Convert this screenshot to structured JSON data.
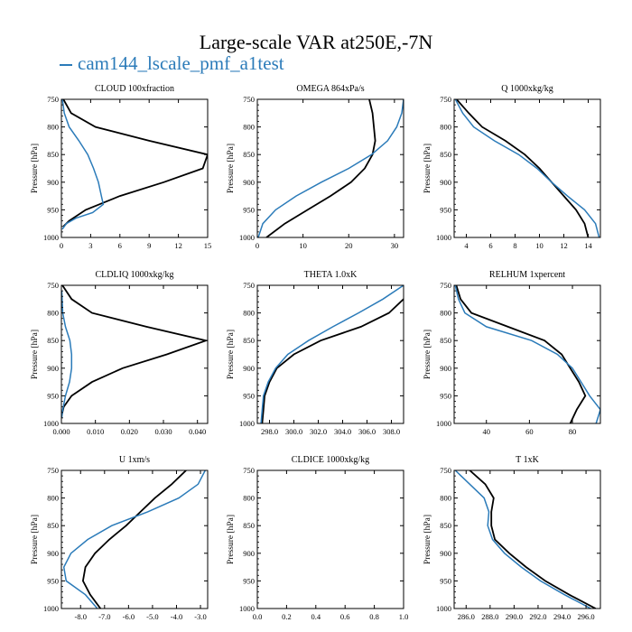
{
  "title": "Large-scale VAR at250E,-7N",
  "legend": {
    "label": "cam144_lscale_pmf_a1test",
    "color": "#2b7bb9"
  },
  "colors": {
    "model": "#2b7bb9",
    "obs": "#000000"
  },
  "chart_data": [
    {
      "type": "line",
      "title": "CLOUD  100xfraction",
      "ylabel": "Pressure [hPa]",
      "xlim": [
        0,
        15
      ],
      "ylim": [
        750,
        1000
      ],
      "xticks": [
        0,
        3,
        6,
        9,
        12,
        15
      ],
      "xticklabels": [
        "0",
        "3",
        "6",
        "9",
        "12",
        "15"
      ],
      "yticks": [
        750,
        800,
        850,
        900,
        950,
        1000
      ],
      "series": [
        {
          "color": "#000000",
          "points": [
            [
              0.2,
              750
            ],
            [
              1.0,
              775
            ],
            [
              3.5,
              800
            ],
            [
              9,
              825
            ],
            [
              15,
              850
            ],
            [
              14.5,
              875
            ],
            [
              10.5,
              900
            ],
            [
              6,
              925
            ],
            [
              2.5,
              950
            ],
            [
              0.8,
              970
            ],
            [
              0.2,
              980
            ]
          ]
        },
        {
          "color": "#2b7bb9",
          "points": [
            [
              0.1,
              750
            ],
            [
              0.3,
              775
            ],
            [
              0.8,
              800
            ],
            [
              1.8,
              825
            ],
            [
              2.7,
              850
            ],
            [
              3.3,
              875
            ],
            [
              3.8,
              900
            ],
            [
              4.1,
              925
            ],
            [
              4.3,
              940
            ],
            [
              3.2,
              955
            ],
            [
              1.5,
              965
            ],
            [
              0.5,
              975
            ],
            [
              0.1,
              985
            ]
          ]
        }
      ]
    },
    {
      "type": "line",
      "title": "OMEGA  864xPa/s",
      "ylabel": "Pressure [hPa]",
      "xlim": [
        0,
        32
      ],
      "ylim": [
        750,
        1000
      ],
      "xticks": [
        0,
        10,
        20,
        30
      ],
      "xticklabels": [
        "0",
        "10",
        "20",
        "30"
      ],
      "yticks": [
        750,
        800,
        850,
        900,
        950,
        1000
      ],
      "series": [
        {
          "color": "#000000",
          "points": [
            [
              24.5,
              750
            ],
            [
              25.2,
              775
            ],
            [
              25.5,
              800
            ],
            [
              25.8,
              825
            ],
            [
              25.2,
              850
            ],
            [
              23.5,
              875
            ],
            [
              20.5,
              900
            ],
            [
              16,
              925
            ],
            [
              11,
              950
            ],
            [
              6,
              975
            ],
            [
              2,
              1000
            ]
          ]
        },
        {
          "color": "#2b7bb9",
          "points": [
            [
              32,
              750
            ],
            [
              31.6,
              775
            ],
            [
              30.5,
              800
            ],
            [
              28.5,
              825
            ],
            [
              25,
              850
            ],
            [
              20,
              875
            ],
            [
              14,
              900
            ],
            [
              8.5,
              925
            ],
            [
              4,
              950
            ],
            [
              1.2,
              975
            ],
            [
              0.2,
              1000
            ]
          ]
        }
      ]
    },
    {
      "type": "line",
      "title": "Q  1000xkg/kg",
      "ylabel": "Pressure [hPa]",
      "xlim": [
        3,
        15
      ],
      "ylim": [
        750,
        1000
      ],
      "xticks": [
        4,
        6,
        8,
        10,
        12,
        14
      ],
      "xticklabels": [
        "4",
        "6",
        "8",
        "10",
        "12",
        "14"
      ],
      "yticks": [
        750,
        800,
        850,
        900,
        950,
        1000
      ],
      "series": [
        {
          "color": "#000000",
          "points": [
            [
              3.2,
              750
            ],
            [
              4.2,
              775
            ],
            [
              5.3,
              800
            ],
            [
              7.2,
              825
            ],
            [
              8.8,
              850
            ],
            [
              10,
              875
            ],
            [
              11,
              900
            ],
            [
              12,
              925
            ],
            [
              13,
              950
            ],
            [
              13.7,
              975
            ],
            [
              14,
              1000
            ]
          ]
        },
        {
          "color": "#2b7bb9",
          "points": [
            [
              3.1,
              750
            ],
            [
              3.7,
              775
            ],
            [
              4.6,
              800
            ],
            [
              6.3,
              825
            ],
            [
              8.3,
              850
            ],
            [
              9.8,
              875
            ],
            [
              11,
              900
            ],
            [
              12.3,
              925
            ],
            [
              13.7,
              950
            ],
            [
              14.6,
              975
            ],
            [
              14.9,
              1000
            ]
          ]
        }
      ]
    },
    {
      "type": "line",
      "title": "CLDLIQ  1000xkg/kg",
      "ylabel": "Pressure [hPa]",
      "xlim": [
        0,
        0.043
      ],
      "ylim": [
        750,
        1000
      ],
      "xticks": [
        0,
        0.01,
        0.02,
        0.03,
        0.04
      ],
      "xticklabels": [
        "0.000",
        "0.010",
        "0.020",
        "0.030",
        "0.040"
      ],
      "yticks": [
        750,
        800,
        850,
        900,
        950,
        1000
      ],
      "series": [
        {
          "color": "#000000",
          "points": [
            [
              0.0003,
              750
            ],
            [
              0.003,
              775
            ],
            [
              0.009,
              800
            ],
            [
              0.025,
              825
            ],
            [
              0.0425,
              850
            ],
            [
              0.031,
              875
            ],
            [
              0.018,
              900
            ],
            [
              0.009,
              925
            ],
            [
              0.003,
              950
            ],
            [
              0.0007,
              970
            ],
            [
              0.0001,
              985
            ]
          ]
        },
        {
          "color": "#2b7bb9",
          "points": [
            [
              0.0001,
              760
            ],
            [
              0.0004,
              800
            ],
            [
              0.0012,
              825
            ],
            [
              0.0025,
              850
            ],
            [
              0.003,
              875
            ],
            [
              0.003,
              900
            ],
            [
              0.0024,
              925
            ],
            [
              0.0012,
              950
            ],
            [
              0.0004,
              975
            ],
            [
              0.0001,
              990
            ]
          ]
        }
      ]
    },
    {
      "type": "line",
      "title": "THETA  1.0xK",
      "ylabel": "Pressure [hPa]",
      "xlim": [
        297,
        309
      ],
      "ylim": [
        750,
        1000
      ],
      "xticks": [
        298,
        300,
        302,
        304,
        306,
        308
      ],
      "xticklabels": [
        "298.0",
        "300.0",
        "302.0",
        "304.0",
        "306.0",
        "308.0"
      ],
      "yticks": [
        750,
        800,
        850,
        900,
        950,
        1000
      ],
      "series": [
        {
          "color": "#000000",
          "points": [
            [
              309,
              775
            ],
            [
              307.8,
              800
            ],
            [
              305.5,
              825
            ],
            [
              302.2,
              850
            ],
            [
              300,
              875
            ],
            [
              298.6,
              900
            ],
            [
              298,
              925
            ],
            [
              297.6,
              950
            ],
            [
              297.5,
              975
            ],
            [
              297.4,
              1000
            ]
          ]
        },
        {
          "color": "#2b7bb9",
          "points": [
            [
              309,
              750
            ],
            [
              307.3,
              775
            ],
            [
              305.3,
              800
            ],
            [
              303.2,
              825
            ],
            [
              301.2,
              850
            ],
            [
              299.5,
              875
            ],
            [
              298.5,
              900
            ],
            [
              297.9,
              925
            ],
            [
              297.5,
              950
            ],
            [
              297.4,
              975
            ],
            [
              297.3,
              1000
            ]
          ]
        }
      ]
    },
    {
      "type": "line",
      "title": "RELHUM  1xpercent",
      "ylabel": "Pressure [hPa]",
      "xlim": [
        25,
        93
      ],
      "ylim": [
        750,
        1000
      ],
      "xticks": [
        40,
        60,
        80
      ],
      "xticklabels": [
        "40",
        "60",
        "80"
      ],
      "yticks": [
        750,
        800,
        850,
        900,
        950,
        1000
      ],
      "series": [
        {
          "color": "#000000",
          "points": [
            [
              26,
              750
            ],
            [
              28,
              775
            ],
            [
              33,
              800
            ],
            [
              50,
              825
            ],
            [
              67,
              850
            ],
            [
              75,
              875
            ],
            [
              79,
              900
            ],
            [
              83,
              925
            ],
            [
              86,
              950
            ],
            [
              82,
              975
            ],
            [
              79,
              1000
            ]
          ]
        },
        {
          "color": "#2b7bb9",
          "points": [
            [
              25.5,
              750
            ],
            [
              27,
              775
            ],
            [
              30,
              800
            ],
            [
              40,
              825
            ],
            [
              61,
              850
            ],
            [
              73,
              875
            ],
            [
              80,
              900
            ],
            [
              84,
              925
            ],
            [
              88,
              950
            ],
            [
              93,
              975
            ],
            [
              91,
              1000
            ]
          ]
        }
      ]
    },
    {
      "type": "line",
      "title": "U  1xm/s",
      "ylabel": "Pressure [hPa]",
      "xlim": [
        -8.8,
        -2.7
      ],
      "ylim": [
        750,
        1000
      ],
      "xticks": [
        -8,
        -7,
        -6,
        -5,
        -4,
        -3
      ],
      "xticklabels": [
        "-8.0",
        "-7.0",
        "-6.0",
        "-5.0",
        "-4.0",
        "-3.0"
      ],
      "yticks": [
        750,
        800,
        850,
        900,
        950,
        1000
      ],
      "series": [
        {
          "color": "#000000",
          "points": [
            [
              -3.6,
              750
            ],
            [
              -4.2,
              775
            ],
            [
              -4.9,
              800
            ],
            [
              -5.5,
              825
            ],
            [
              -6.1,
              850
            ],
            [
              -6.8,
              875
            ],
            [
              -7.4,
              900
            ],
            [
              -7.8,
              925
            ],
            [
              -7.9,
              950
            ],
            [
              -7.6,
              975
            ],
            [
              -7.0,
              1010
            ]
          ]
        },
        {
          "color": "#2b7bb9",
          "points": [
            [
              -2.8,
              750
            ],
            [
              -3.1,
              775
            ],
            [
              -3.9,
              800
            ],
            [
              -5.2,
              825
            ],
            [
              -6.7,
              850
            ],
            [
              -7.7,
              875
            ],
            [
              -8.4,
              900
            ],
            [
              -8.7,
              925
            ],
            [
              -8.6,
              950
            ],
            [
              -7.8,
              975
            ],
            [
              -7.1,
              1010
            ]
          ]
        }
      ]
    },
    {
      "type": "line",
      "title": "CLDICE  1000xkg/kg",
      "ylabel": "Pressure [hPa]",
      "xlim": [
        0,
        1
      ],
      "ylim": [
        750,
        1000
      ],
      "xticks": [
        0,
        0.2,
        0.4,
        0.6,
        0.8,
        1.0
      ],
      "xticklabels": [
        "0.0",
        "0.2",
        "0.4",
        "0.6",
        "0.8",
        "1.0"
      ],
      "yticks": [
        750,
        800,
        850,
        900,
        950,
        1000
      ],
      "series": []
    },
    {
      "type": "line",
      "title": "T  1xK",
      "ylabel": "Pressure [hPa]",
      "xlim": [
        285,
        297.2
      ],
      "ylim": [
        750,
        1000
      ],
      "xticks": [
        286,
        288,
        290,
        292,
        294,
        296
      ],
      "xticklabels": [
        "286.0",
        "288.0",
        "290.0",
        "292.0",
        "294.0",
        "296.0"
      ],
      "yticks": [
        750,
        800,
        850,
        900,
        950,
        1000
      ],
      "series": [
        {
          "color": "#000000",
          "points": [
            [
              286.3,
              750
            ],
            [
              287.6,
              775
            ],
            [
              288.3,
              800
            ],
            [
              288.1,
              825
            ],
            [
              288.1,
              850
            ],
            [
              288.4,
              875
            ],
            [
              289.6,
              900
            ],
            [
              291,
              925
            ],
            [
              292.6,
              950
            ],
            [
              294.6,
              975
            ],
            [
              296.8,
              1000
            ]
          ]
        },
        {
          "color": "#2b7bb9",
          "points": [
            [
              285.1,
              750
            ],
            [
              286.3,
              775
            ],
            [
              287.5,
              800
            ],
            [
              287.9,
              825
            ],
            [
              287.8,
              850
            ],
            [
              288.2,
              875
            ],
            [
              289.2,
              900
            ],
            [
              290.6,
              925
            ],
            [
              292.2,
              950
            ],
            [
              294.2,
              975
            ],
            [
              296.4,
              1000
            ]
          ]
        }
      ]
    }
  ]
}
